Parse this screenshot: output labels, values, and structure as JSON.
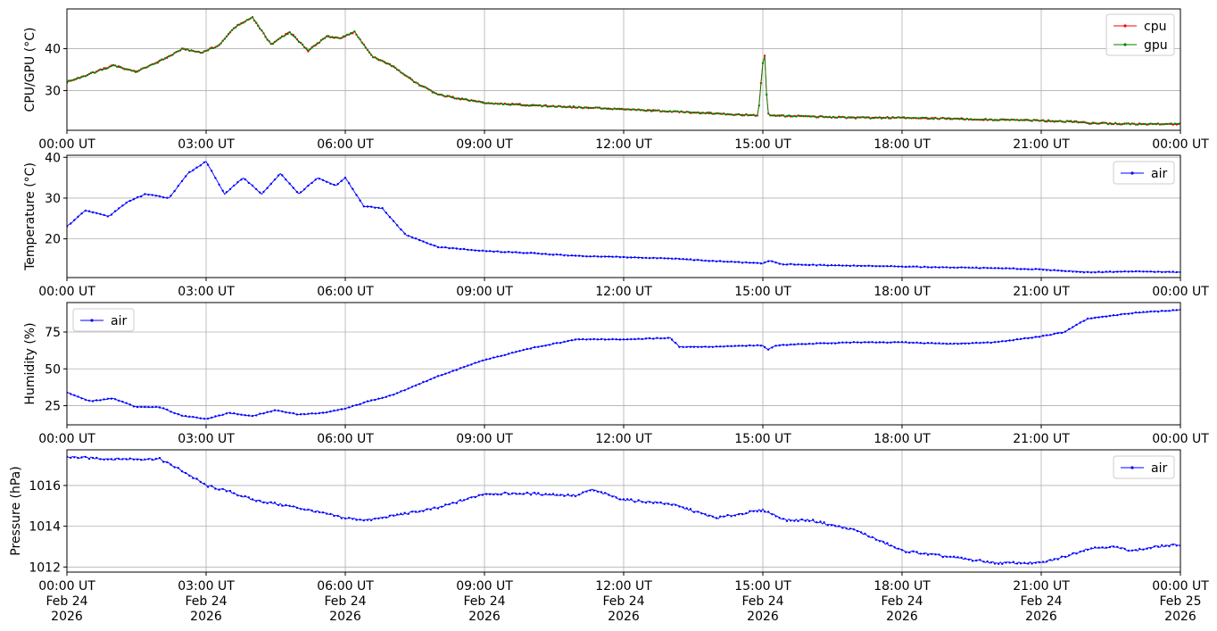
{
  "chart_data": [
    {
      "type": "line",
      "ylabel": "CPU/GPU (°C)",
      "ylim": [
        20.5,
        49.5
      ],
      "yticks": [
        30,
        40
      ],
      "grid": true,
      "legend": "top-right",
      "x_tick_labels": [
        "00:00 UT",
        "03:00 UT",
        "06:00 UT",
        "09:00 UT",
        "12:00 UT",
        "15:00 UT",
        "18:00 UT",
        "21:00 UT",
        "00:00 UT"
      ],
      "x_hours": [
        0,
        0.5,
        1,
        1.5,
        2,
        2.5,
        2.9,
        3.3,
        3.6,
        4,
        4.4,
        4.8,
        5.2,
        5.6,
        5.9,
        6.2,
        6.6,
        7,
        7.5,
        8,
        8.5,
        9,
        10,
        11,
        12,
        13,
        14,
        14.9,
        15.03,
        15.1,
        15.2,
        16,
        17,
        18,
        19,
        20,
        21,
        21.8,
        22,
        23,
        24
      ],
      "series": [
        {
          "name": "cpu",
          "color": "#ff0000",
          "values": [
            32,
            34,
            36,
            34.5,
            37,
            40,
            39,
            41,
            45,
            47.5,
            41,
            44,
            39.5,
            43,
            42.5,
            44,
            38,
            36,
            32,
            29,
            28,
            27,
            26.5,
            26,
            25.5,
            25,
            24.5,
            24,
            40.5,
            24.5,
            24,
            23.8,
            23.5,
            23.5,
            23.3,
            23,
            22.8,
            22.5,
            22.2,
            22,
            22
          ]
        },
        {
          "name": "gpu",
          "color": "#008000",
          "values": [
            32,
            34,
            36,
            34.5,
            37,
            40,
            39,
            41,
            45,
            47.5,
            41,
            44,
            39.5,
            43,
            42.5,
            44,
            38,
            36,
            32,
            29,
            28,
            27,
            26.5,
            26,
            25.5,
            25,
            24.5,
            24,
            40.5,
            24.5,
            24,
            23.8,
            23.5,
            23.5,
            23.3,
            23,
            22.8,
            22.5,
            22.2,
            22,
            22
          ]
        }
      ]
    },
    {
      "type": "line",
      "ylabel": "Temperature (°C)",
      "ylim": [
        10.5,
        40.5
      ],
      "yticks": [
        20,
        30,
        40
      ],
      "grid": true,
      "legend": "top-right",
      "x_tick_labels": [
        "00:00 UT",
        "03:00 UT",
        "06:00 UT",
        "09:00 UT",
        "12:00 UT",
        "15:00 UT",
        "18:00 UT",
        "21:00 UT",
        "00:00 UT"
      ],
      "x_hours": [
        0,
        0.4,
        0.9,
        1.3,
        1.7,
        2.2,
        2.6,
        3,
        3.4,
        3.8,
        4.2,
        4.6,
        5,
        5.4,
        5.8,
        6,
        6.4,
        6.8,
        7.3,
        8,
        9,
        10,
        11,
        12,
        13,
        14,
        15,
        15.15,
        15.4,
        16,
        17,
        18,
        19,
        20,
        21,
        22,
        23,
        24
      ],
      "series": [
        {
          "name": "air",
          "color": "#0000ff",
          "values": [
            23,
            27,
            25.5,
            29,
            31,
            30,
            36,
            39,
            31,
            35,
            31,
            36,
            31,
            35,
            33,
            35,
            28,
            27.5,
            21,
            18,
            17,
            16.5,
            15.8,
            15.5,
            15.2,
            14.5,
            14,
            14.7,
            13.8,
            13.6,
            13.4,
            13.2,
            13,
            12.8,
            12.5,
            11.8,
            12,
            11.8
          ]
        }
      ]
    },
    {
      "type": "line",
      "ylabel": "Humidity (%)",
      "ylim": [
        12,
        95
      ],
      "yticks": [
        25,
        50,
        75
      ],
      "grid": true,
      "legend": "top-left",
      "x_tick_labels": [
        "00:00 UT",
        "03:00 UT",
        "06:00 UT",
        "09:00 UT",
        "12:00 UT",
        "15:00 UT",
        "18:00 UT",
        "21:00 UT",
        "00:00 UT"
      ],
      "x_hours": [
        0,
        0.5,
        1,
        1.5,
        2,
        2.5,
        3,
        3.5,
        4,
        4.5,
        5,
        5.5,
        6,
        6.5,
        7,
        8,
        9,
        10,
        11,
        12,
        13,
        13.2,
        14,
        15,
        15.1,
        15.3,
        16,
        17,
        18,
        19,
        20,
        21,
        21.5,
        22,
        23,
        24
      ],
      "series": [
        {
          "name": "air",
          "color": "#0000ff",
          "values": [
            34,
            28,
            30,
            24,
            24,
            18,
            16,
            20,
            18,
            22,
            19,
            20,
            23,
            28,
            32,
            45,
            56,
            64,
            70,
            70,
            71,
            65,
            65,
            66,
            63,
            66,
            67,
            68,
            68,
            67,
            68,
            72,
            75,
            84,
            88,
            90
          ]
        }
      ]
    },
    {
      "type": "line",
      "ylabel": "Pressure (hPa)",
      "ylim": [
        1011.75,
        1017.75
      ],
      "yticks": [
        1012,
        1014,
        1016
      ],
      "grid": true,
      "legend": "top-right",
      "x_tick_labels": [
        "00:00 UT",
        "03:00 UT",
        "06:00 UT",
        "09:00 UT",
        "12:00 UT",
        "15:00 UT",
        "18:00 UT",
        "21:00 UT",
        "00:00 UT"
      ],
      "x_date_labels": [
        "Feb 24",
        "Feb 24",
        "Feb 24",
        "Feb 24",
        "Feb 24",
        "Feb 24",
        "Feb 24",
        "Feb 24",
        "Feb 25"
      ],
      "x_year_labels": [
        "2026",
        "2026",
        "2026",
        "2026",
        "2026",
        "2026",
        "2026",
        "2026",
        "2026"
      ],
      "x_hours": [
        0,
        1,
        2,
        2.5,
        3,
        3.5,
        4,
        5,
        6,
        6.5,
        7,
        8,
        9,
        10,
        11,
        11.3,
        12,
        13,
        14,
        15,
        15.5,
        16,
        17,
        18,
        19,
        20,
        21,
        21.5,
        22,
        22.5,
        23,
        23.5,
        24
      ],
      "series": [
        {
          "name": "air",
          "color": "#0000ff",
          "values": [
            1017.4,
            1017.3,
            1017.3,
            1016.7,
            1016,
            1015.7,
            1015.3,
            1014.9,
            1014.4,
            1014.3,
            1014.5,
            1014.9,
            1015.6,
            1015.6,
            1015.5,
            1015.8,
            1015.3,
            1015.1,
            1014.4,
            1014.8,
            1014.3,
            1014.3,
            1013.8,
            1012.8,
            1012.5,
            1012.2,
            1012.2,
            1012.5,
            1012.9,
            1013,
            1012.8,
            1013,
            1013.1
          ]
        }
      ]
    }
  ]
}
